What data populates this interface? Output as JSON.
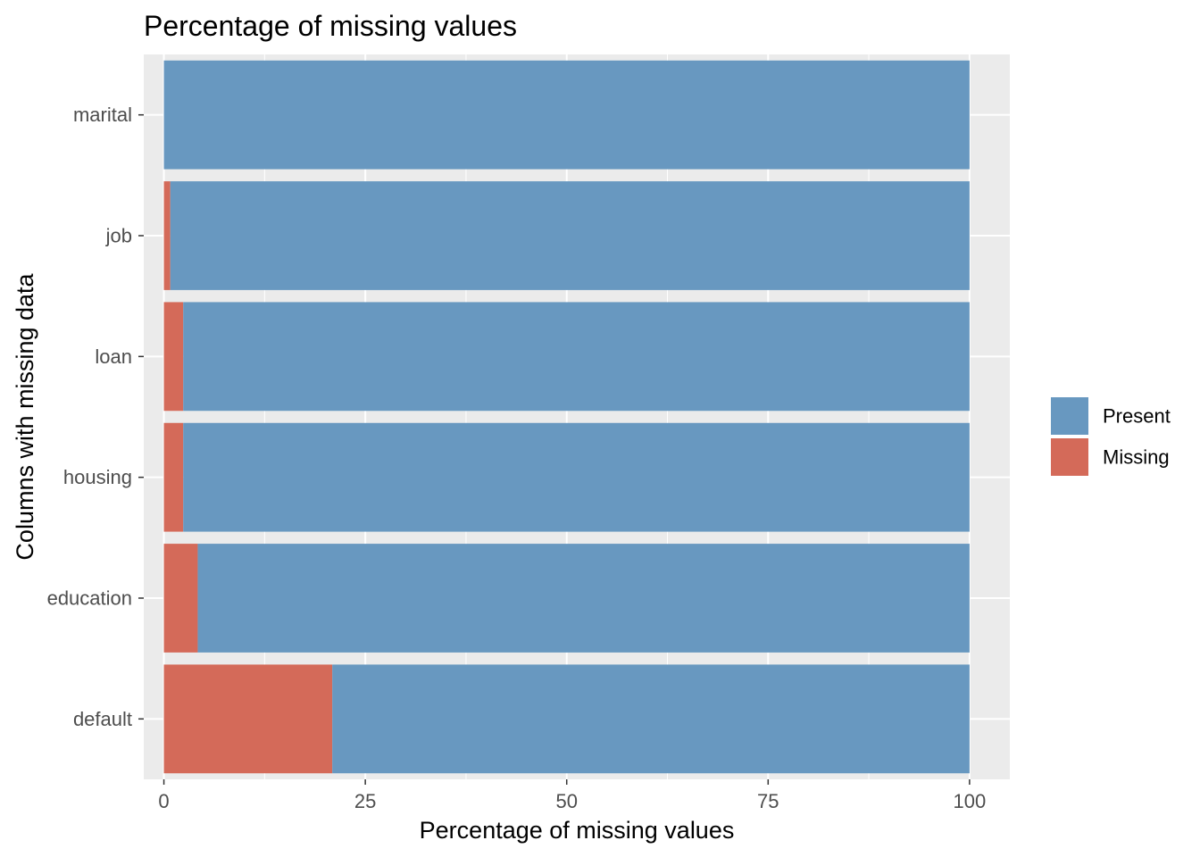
{
  "chart_data": {
    "type": "bar",
    "orientation": "horizontal",
    "stacked": true,
    "title": "Percentage of missing values",
    "xlabel": "Percentage of missing values",
    "ylabel": "Columns with missing data",
    "categories": [
      "marital",
      "job",
      "loan",
      "housing",
      "education",
      "default"
    ],
    "series": [
      {
        "name": "Missing",
        "values": [
          0,
          0.8,
          2.4,
          2.4,
          4.2,
          20.9
        ],
        "color": "#D46A59"
      },
      {
        "name": "Present",
        "values": [
          100,
          99.2,
          97.6,
          97.6,
          95.8,
          79.1
        ],
        "color": "#6898C0"
      }
    ],
    "xlim": [
      -2.5,
      105
    ],
    "xticks": [
      0,
      25,
      50,
      75,
      100
    ],
    "xtick_labels": [
      "0",
      "25",
      "50",
      "75",
      "100"
    ],
    "grid": true,
    "legend": {
      "position": "right",
      "entries": [
        {
          "label": "Present",
          "color": "#6898C0"
        },
        {
          "label": "Missing",
          "color": "#D46A59"
        }
      ]
    },
    "panel_background": "#EBEBEB",
    "gridline_color": "#FFFFFF"
  }
}
